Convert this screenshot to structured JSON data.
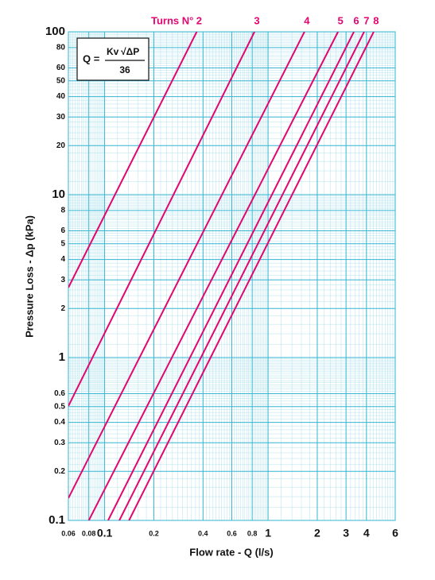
{
  "chart_data": {
    "type": "line",
    "turns_label": "Turns N°",
    "formula": {
      "lhs": "Q =",
      "numerator_kv": "Kv",
      "numerator_root": "√ΔP",
      "denominator": "36"
    },
    "x_label": "Flow rate - Q (l/s)",
    "y_label": "Pressure Loss  - Δp (kPa)",
    "log_x": true,
    "log_y": true,
    "grid": true,
    "xlim": [
      0.06,
      6
    ],
    "ylim": [
      0.1,
      100
    ],
    "xticks": [
      0.06,
      0.08,
      0.1,
      0.2,
      0.4,
      0.6,
      0.8,
      1,
      2,
      3,
      4,
      6
    ],
    "yticks": [
      0.1,
      0.2,
      0.3,
      0.4,
      0.5,
      0.6,
      1,
      2,
      3,
      4,
      5,
      6,
      8,
      10,
      20,
      30,
      40,
      50,
      60,
      80,
      100
    ],
    "series": [
      {
        "name": "2",
        "color": "#e2066f",
        "x": [
          0.06,
          0.366
        ],
        "y": [
          2.69,
          100
        ]
      },
      {
        "name": "3",
        "color": "#e2066f",
        "x": [
          0.06,
          0.826
        ],
        "y": [
          0.504,
          100
        ]
      },
      {
        "name": "4",
        "color": "#e2066f",
        "x": [
          0.06,
          1.67
        ],
        "y": [
          0.137,
          100
        ]
      },
      {
        "name": "5",
        "color": "#e2066f",
        "x": [
          0.08,
          2.68
        ],
        "y": [
          0.1,
          100
        ]
      },
      {
        "name": "6",
        "color": "#e2066f",
        "x": [
          0.105,
          3.35
        ],
        "y": [
          0.1,
          100
        ]
      },
      {
        "name": "7",
        "color": "#e2066f",
        "x": [
          0.123,
          3.87
        ],
        "y": [
          0.1,
          100
        ]
      },
      {
        "name": "8",
        "color": "#e2066f",
        "x": [
          0.141,
          4.43
        ],
        "y": [
          0.1,
          100
        ]
      }
    ]
  }
}
